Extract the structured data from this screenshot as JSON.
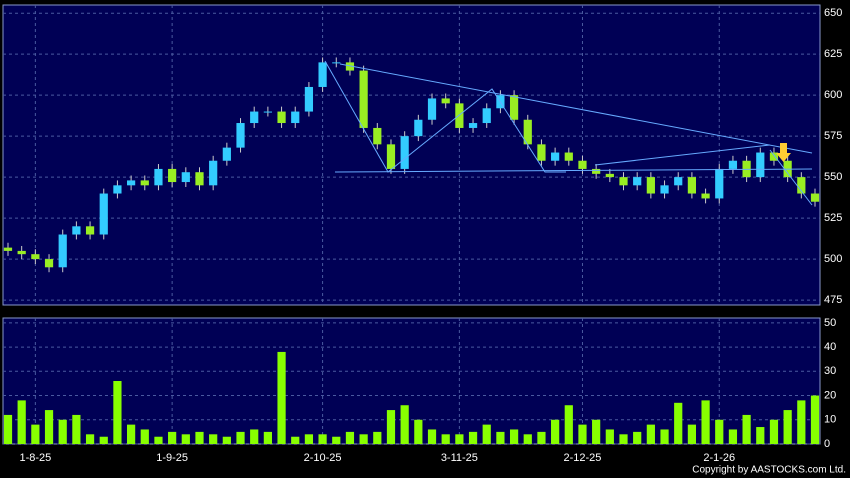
{
  "chart_data": {
    "type": "candlestick",
    "categories": [
      null,
      null,
      "1-8-25",
      null,
      null,
      null,
      null,
      null,
      null,
      null,
      null,
      null,
      "1-9-25",
      null,
      null,
      null,
      null,
      null,
      null,
      null,
      null,
      null,
      null,
      "2-10-25",
      null,
      null,
      null,
      null,
      null,
      null,
      null,
      null,
      null,
      "3-11-25",
      null,
      null,
      null,
      null,
      null,
      null,
      null,
      null,
      "2-12-25",
      null,
      null,
      null,
      null,
      null,
      null,
      null,
      null,
      null,
      "2-1-26",
      null,
      null,
      null,
      null,
      null,
      null,
      null
    ],
    "open": [
      507,
      505,
      503,
      500,
      495,
      515,
      520,
      515,
      540,
      545,
      548,
      545,
      555,
      547,
      553,
      545,
      560,
      568,
      583,
      590,
      590,
      583,
      590,
      605,
      620,
      620,
      615,
      580,
      570,
      555,
      575,
      585,
      598,
      595,
      580,
      583,
      592,
      600,
      585,
      570,
      560,
      565,
      560,
      555,
      552,
      550,
      545,
      550,
      540,
      545,
      550,
      540,
      537,
      555,
      560,
      550,
      565,
      560,
      550,
      540
    ],
    "high": [
      510,
      508,
      506,
      503,
      518,
      523,
      523,
      543,
      548,
      551,
      551,
      558,
      558,
      556,
      556,
      563,
      571,
      586,
      593,
      593,
      593,
      593,
      608,
      623,
      623,
      623,
      618,
      583,
      573,
      578,
      588,
      601,
      601,
      598,
      586,
      595,
      603,
      603,
      588,
      573,
      568,
      568,
      563,
      558,
      555,
      553,
      553,
      553,
      548,
      553,
      553,
      543,
      558,
      563,
      563,
      568,
      568,
      563,
      553,
      543
    ],
    "low": [
      502,
      500,
      497,
      492,
      492,
      512,
      512,
      512,
      537,
      542,
      542,
      542,
      544,
      544,
      542,
      542,
      557,
      565,
      580,
      587,
      580,
      580,
      587,
      602,
      617,
      612,
      577,
      567,
      552,
      552,
      572,
      582,
      592,
      577,
      577,
      580,
      589,
      582,
      567,
      557,
      557,
      557,
      552,
      549,
      547,
      542,
      542,
      537,
      537,
      542,
      537,
      534,
      534,
      552,
      547,
      547,
      557,
      547,
      537,
      532
    ],
    "close": [
      505,
      503,
      500,
      495,
      515,
      520,
      515,
      540,
      545,
      548,
      545,
      555,
      547,
      553,
      545,
      560,
      568,
      583,
      590,
      590,
      583,
      590,
      605,
      620,
      620,
      615,
      580,
      570,
      555,
      575,
      585,
      598,
      595,
      580,
      583,
      592,
      600,
      585,
      570,
      560,
      565,
      560,
      555,
      552,
      550,
      545,
      550,
      540,
      545,
      550,
      540,
      537,
      555,
      560,
      550,
      565,
      560,
      550,
      540,
      535
    ],
    "up_color": "#33ccff",
    "down_color": "#99ee22",
    "ylim": [
      472,
      655
    ],
    "yticks": [
      475,
      500,
      525,
      550,
      575,
      600,
      625,
      650
    ],
    "volume": {
      "values": [
        12,
        18,
        8,
        14,
        10,
        12,
        4,
        3,
        26,
        8,
        6,
        3,
        5,
        4,
        5,
        4,
        3,
        5,
        6,
        5,
        38,
        3,
        4,
        4,
        3,
        5,
        4,
        5,
        14,
        16,
        10,
        6,
        4,
        4,
        5,
        8,
        5,
        6,
        4,
        5,
        10,
        16,
        8,
        10,
        6,
        4,
        5,
        8,
        6,
        17,
        8,
        18,
        10,
        6,
        12,
        7,
        10,
        14,
        18,
        20
      ],
      "color": "#88ff00",
      "ylim": [
        0,
        52
      ],
      "yticks": [
        0,
        10,
        20,
        30,
        40,
        50
      ]
    },
    "grid": true,
    "copyright": "Copyright by AASTOCKS.com Ltd."
  }
}
